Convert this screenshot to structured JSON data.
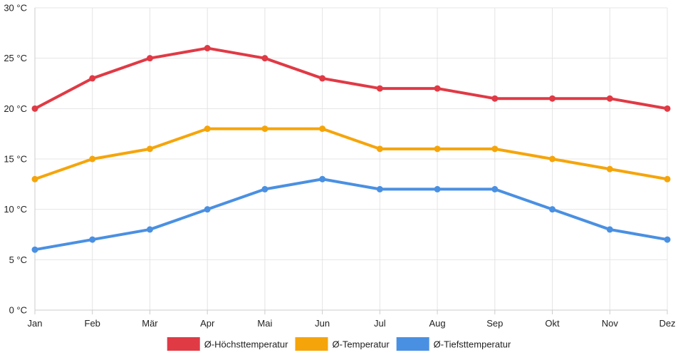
{
  "chart_data": {
    "type": "line",
    "title": "",
    "xlabel": "",
    "ylabel": "",
    "categories": [
      "Jan",
      "Feb",
      "Mär",
      "Apr",
      "Mai",
      "Jun",
      "Jul",
      "Aug",
      "Sep",
      "Okt",
      "Nov",
      "Dez"
    ],
    "ylim": [
      0,
      30
    ],
    "yticks": [
      0,
      5,
      10,
      15,
      20,
      25,
      30
    ],
    "ytick_labels": [
      "0 °C",
      "5 °C",
      "10 °C",
      "15 °C",
      "20 °C",
      "25 °C",
      "30 °C"
    ],
    "grid": true,
    "legend_position": "bottom",
    "series": [
      {
        "name": "Ø-Höchsttemperatur",
        "color": "#e03a45",
        "values": [
          20,
          23,
          25,
          26,
          25,
          23,
          22,
          22,
          21,
          21,
          21,
          20
        ]
      },
      {
        "name": "Ø-Temperatur",
        "color": "#f5a50a",
        "values": [
          13,
          15,
          16,
          18,
          18,
          18,
          16,
          16,
          16,
          15,
          14,
          13
        ]
      },
      {
        "name": "Ø-Tiefsttemperatur",
        "color": "#4a90e2",
        "values": [
          6,
          7,
          8,
          10,
          12,
          13,
          12,
          12,
          12,
          10,
          8,
          7
        ]
      }
    ]
  }
}
